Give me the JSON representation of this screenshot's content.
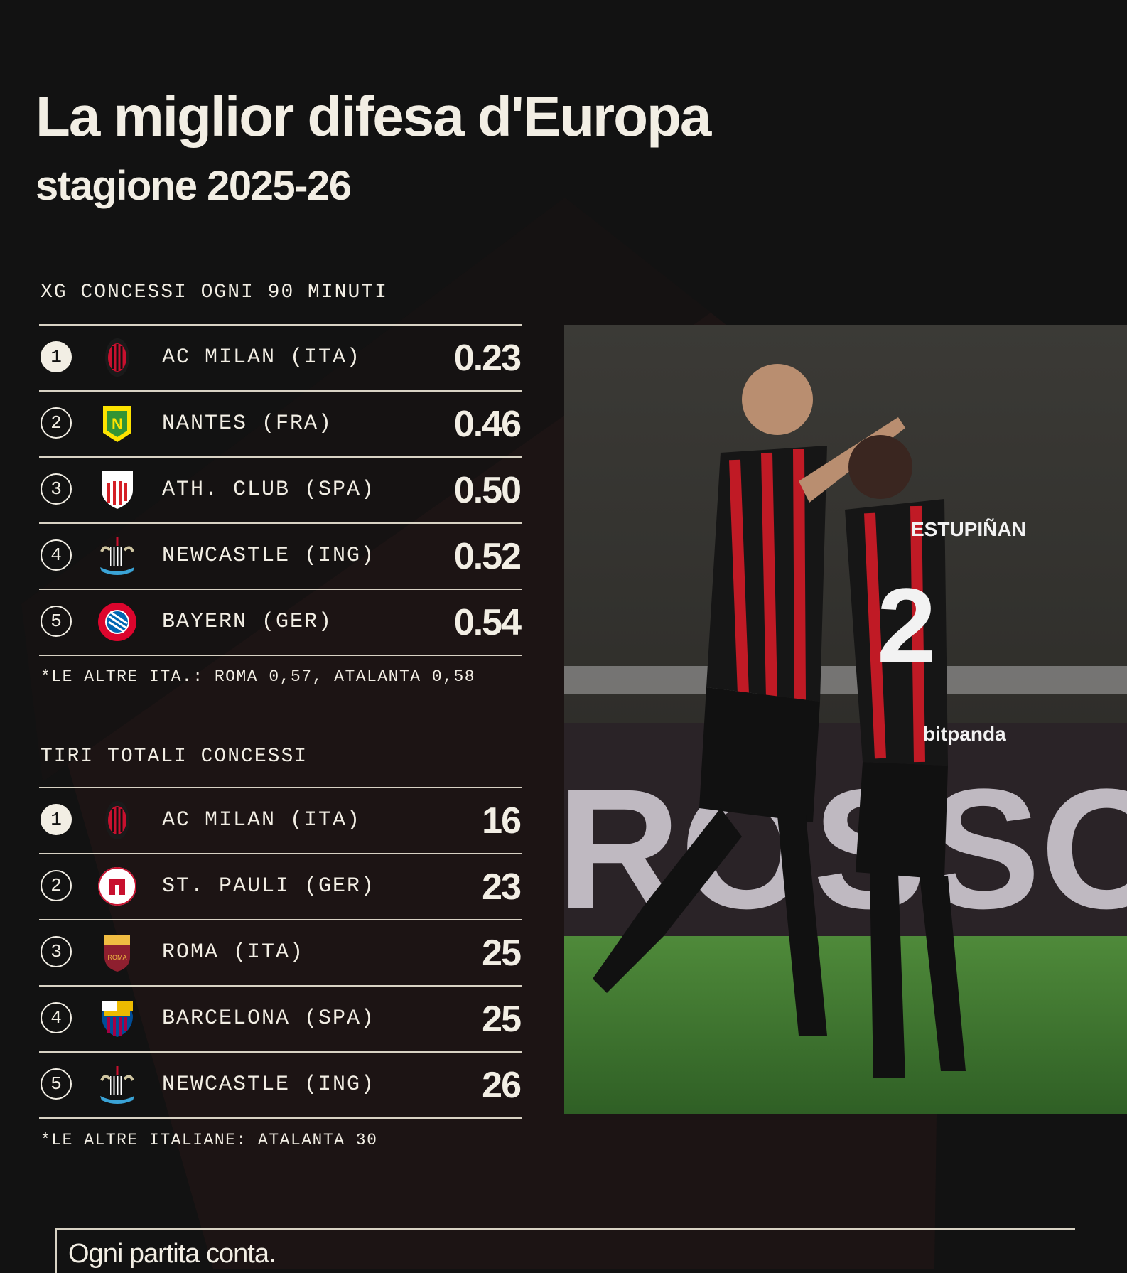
{
  "header": {
    "title": "La miglior difesa d'Europa",
    "subtitle": "stagione 2025-26"
  },
  "colors": {
    "background": "#121212",
    "text": "#f2eee4",
    "accent_red": "#d0202e"
  },
  "xg_section": {
    "heading": "XG CONCESSI OGNI 90 MINUTI",
    "rows": [
      {
        "rank": "1",
        "team": "AC MILAN (ITA)",
        "value": "0.23",
        "logo": "ac-milan-crest-icon"
      },
      {
        "rank": "2",
        "team": "NANTES (FRA)",
        "value": "0.46",
        "logo": "nantes-crest-icon"
      },
      {
        "rank": "3",
        "team": "ATH. CLUB (SPA)",
        "value": "0.50",
        "logo": "athletic-club-crest-icon"
      },
      {
        "rank": "4",
        "team": "NEWCASTLE (ING)",
        "value": "0.52",
        "logo": "newcastle-crest-icon"
      },
      {
        "rank": "5",
        "team": "BAYERN (GER)",
        "value": "0.54",
        "logo": "bayern-crest-icon"
      }
    ],
    "note": "*LE ALTRE ITA.: ROMA 0,57, ATALANTA 0,58"
  },
  "shots_section": {
    "heading": "TIRI TOTALI CONCESSI",
    "rows": [
      {
        "rank": "1",
        "team": "AC MILAN (ITA)",
        "value": "16",
        "logo": "ac-milan-crest-icon"
      },
      {
        "rank": "2",
        "team": "ST. PAULI (GER)",
        "value": "23",
        "logo": "st-pauli-crest-icon"
      },
      {
        "rank": "3",
        "team": "ROMA (ITA)",
        "value": "25",
        "logo": "roma-crest-icon"
      },
      {
        "rank": "4",
        "team": "BARCELONA (SPA)",
        "value": "25",
        "logo": "barcelona-crest-icon"
      },
      {
        "rank": "5",
        "team": "NEWCASTLE (ING)",
        "value": "26",
        "logo": "newcastle-crest-icon"
      }
    ],
    "note": "*LE ALTRE ITALIANE: ATALANTA 30"
  },
  "photo": {
    "jersey_name": "ESTUPIÑAN",
    "jersey_number": "2",
    "sponsor": "bitpanda"
  },
  "footer": {
    "tagline": "Ogni partita conta."
  }
}
